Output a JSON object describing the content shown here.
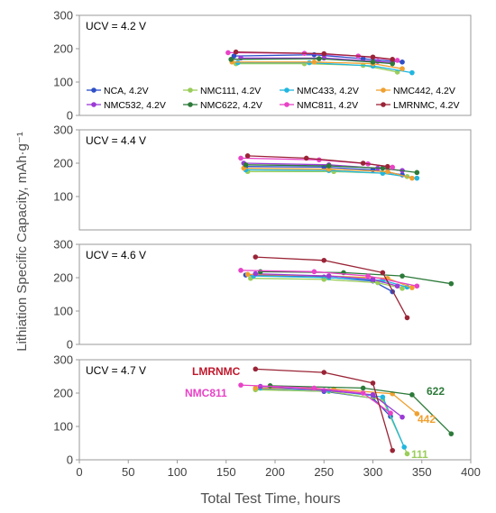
{
  "chart_data": {
    "type": "line",
    "ylabel": "Lithiation Specific Capacity, mAh·g⁻¹",
    "xlabel": "Total Test Time, hours",
    "xlim": [
      0,
      400
    ],
    "xticks": [
      0,
      50,
      100,
      150,
      200,
      250,
      300,
      350,
      400
    ],
    "grid": false,
    "legend_position": "inside-bottom of top panel",
    "legend": [
      {
        "key": "NCA",
        "label": "NCA, 4.2V",
        "color": "#2e4fc7"
      },
      {
        "key": "NMC111",
        "label": "NMC111, 4.2V",
        "color": "#9acd5a"
      },
      {
        "key": "NMC433",
        "label": "NMC433, 4.2V",
        "color": "#21b6e0"
      },
      {
        "key": "NMC442",
        "label": "NMC442, 4.2V",
        "color": "#f0a030"
      },
      {
        "key": "NMC532",
        "label": "NMC532, 4.2V",
        "color": "#9b3ad6"
      },
      {
        "key": "NMC622",
        "label": "NMC622, 4.2V",
        "color": "#2d7a3a"
      },
      {
        "key": "NMC811",
        "label": "NMC811, 4.2V",
        "color": "#e842c6"
      },
      {
        "key": "LMRNMC",
        "label": "LMRNMC, 4.2V",
        "color": "#9a2436"
      }
    ],
    "panels": [
      {
        "label": "UCV = 4.2 V",
        "ylim": [
          0,
          300
        ],
        "yticks": [
          0,
          100,
          200,
          300
        ],
        "series": [
          {
            "key": "NCA",
            "x": [
              158,
              240,
              290,
              330
            ],
            "y": [
              178,
              182,
              170,
              160
            ]
          },
          {
            "key": "NMC111",
            "x": [
              160,
              230,
              290,
              325
            ],
            "y": [
              155,
              155,
              150,
              130
            ]
          },
          {
            "key": "NMC433",
            "x": [
              162,
              235,
              300,
              340
            ],
            "y": [
              158,
              158,
              148,
              128
            ]
          },
          {
            "key": "NMC442",
            "x": [
              156,
              240,
              300,
              330
            ],
            "y": [
              160,
              160,
              155,
              140
            ]
          },
          {
            "key": "NMC532",
            "x": [
              165,
              250,
              305,
              320
            ],
            "y": [
              172,
              172,
              162,
              158
            ]
          },
          {
            "key": "NMC622",
            "x": [
              155,
              245,
              300,
              320
            ],
            "y": [
              168,
              170,
              160,
              155
            ]
          },
          {
            "key": "NMC811",
            "x": [
              152,
              230,
              285,
              325
            ],
            "y": [
              188,
              186,
              178,
              165
            ]
          },
          {
            "key": "LMRNMC",
            "x": [
              160,
              250,
              300,
              320
            ],
            "y": [
              190,
              185,
              175,
              168
            ]
          }
        ]
      },
      {
        "label": "UCV = 4.4 V",
        "ylim": [
          0,
          300
        ],
        "yticks": [
          100,
          200,
          300
        ],
        "series": [
          {
            "key": "NCA",
            "x": [
              170,
              250,
              300,
              330
            ],
            "y": [
              190,
              188,
              180,
              165
            ]
          },
          {
            "key": "NMC111",
            "x": [
              172,
              260,
              310,
              335
            ],
            "y": [
              175,
              175,
              170,
              160
            ]
          },
          {
            "key": "NMC433",
            "x": [
              170,
              255,
              310,
              345
            ],
            "y": [
              180,
              178,
              170,
              155
            ]
          },
          {
            "key": "NMC442",
            "x": [
              168,
              255,
              315,
              340
            ],
            "y": [
              185,
              182,
              175,
              155
            ]
          },
          {
            "key": "NMC532",
            "x": [
              168,
              255,
              305,
              330
            ],
            "y": [
              200,
              195,
              185,
              178
            ]
          },
          {
            "key": "NMC622",
            "x": [
              170,
              255,
              310,
              345
            ],
            "y": [
              195,
              192,
              185,
              172
            ]
          },
          {
            "key": "NMC811",
            "x": [
              165,
              245,
              295,
              320
            ],
            "y": [
              215,
              210,
              198,
              188
            ]
          },
          {
            "key": "LMRNMC",
            "x": [
              172,
              232,
              290,
              315
            ],
            "y": [
              222,
              215,
              200,
              190
            ]
          }
        ]
      },
      {
        "label": "UCV = 4.6 V",
        "ylim": [
          0,
          300
        ],
        "yticks": [
          0,
          100,
          200,
          300
        ],
        "series": [
          {
            "key": "NCA",
            "x": [
              170,
              250,
              300,
              320
            ],
            "y": [
              208,
              202,
              190,
              158
            ]
          },
          {
            "key": "NMC111",
            "x": [
              175,
              250,
              305,
              330
            ],
            "y": [
              198,
              195,
              185,
              168
            ]
          },
          {
            "key": "NMC433",
            "x": [
              178,
              255,
              310,
              335
            ],
            "y": [
              205,
              200,
              192,
              172
            ]
          },
          {
            "key": "NMC442",
            "x": [
              172,
              255,
              315,
              340
            ],
            "y": [
              210,
              205,
              198,
              170
            ]
          },
          {
            "key": "NMC532",
            "x": [
              180,
              255,
              300,
              325
            ],
            "y": [
              212,
              205,
              195,
              175
            ]
          },
          {
            "key": "NMC622",
            "x": [
              185,
              270,
              330,
              380
            ],
            "y": [
              218,
              215,
              205,
              182
            ]
          },
          {
            "key": "NMC811",
            "x": [
              165,
              240,
              295,
              345
            ],
            "y": [
              222,
              218,
              205,
              175
            ]
          },
          {
            "key": "LMRNMC",
            "x": [
              180,
              250,
              310,
              335
            ],
            "y": [
              262,
              252,
              215,
              80
            ]
          }
        ]
      },
      {
        "label": "UCV = 4.7 V",
        "ylim": [
          0,
          300
        ],
        "yticks": [
          0,
          100,
          200,
          300
        ],
        "series": [
          {
            "key": "NCA",
            "x": [
              180,
              250,
              300,
              318
            ],
            "y": [
              212,
              205,
              185,
              130
            ]
          },
          {
            "key": "NMC111",
            "x": [
              180,
              255,
              310,
              335
            ],
            "y": [
              210,
              205,
              180,
              18
            ]
          },
          {
            "key": "NMC433",
            "x": [
              185,
              255,
              310,
              332
            ],
            "y": [
              215,
              208,
              188,
              38
            ]
          },
          {
            "key": "NMC442",
            "x": [
              180,
              260,
              320,
              345
            ],
            "y": [
              215,
              212,
              198,
              138
            ]
          },
          {
            "key": "NMC532",
            "x": [
              185,
              250,
              300,
              330
            ],
            "y": [
              220,
              208,
              195,
              128
            ]
          },
          {
            "key": "NMC622",
            "x": [
              195,
              290,
              340,
              380
            ],
            "y": [
              222,
              215,
              195,
              78
            ]
          },
          {
            "key": "NMC811",
            "x": [
              165,
              240,
              290,
              318
            ],
            "y": [
              224,
              215,
              200,
              140
            ]
          },
          {
            "key": "LMRNMC",
            "x": [
              180,
              250,
              300,
              320
            ],
            "y": [
              272,
              262,
              230,
              28
            ]
          }
        ],
        "annotations": [
          {
            "text": "LMRNMC",
            "key": "LMRNMC",
            "color": "#c0182c"
          },
          {
            "text": "NMC811",
            "key": "NMC811",
            "color": "#e842c6"
          },
          {
            "text": "622",
            "key": "NMC622",
            "color": "#2d7a3a"
          },
          {
            "text": "442",
            "key": "NMC442",
            "color": "#f0a030"
          },
          {
            "text": "111",
            "key": "NMC111",
            "color": "#9acd5a"
          }
        ]
      }
    ]
  }
}
